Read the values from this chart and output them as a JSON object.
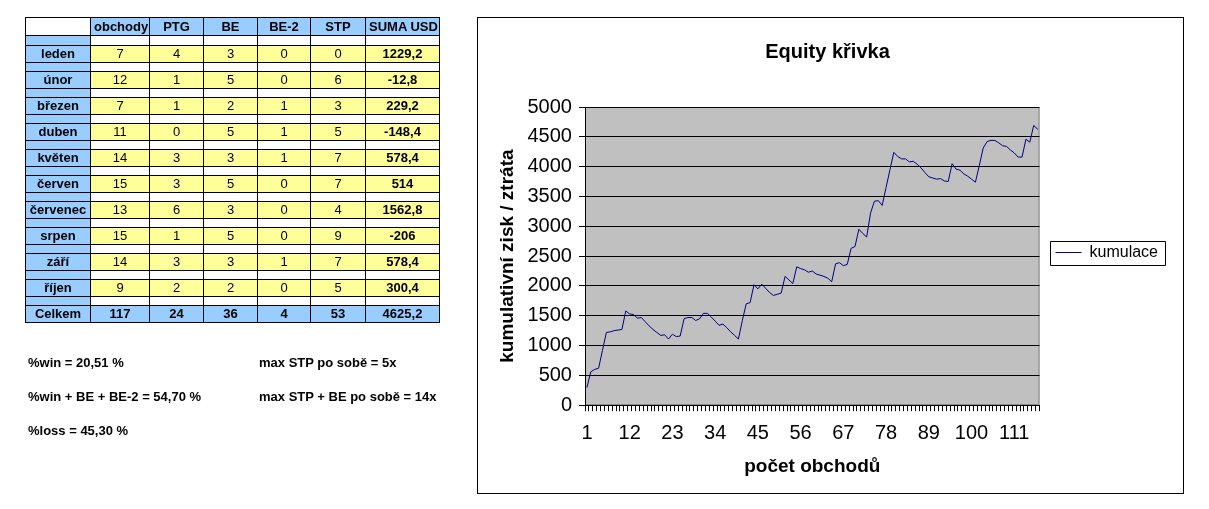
{
  "chart_data": [
    {
      "type": "other",
      "categories": [
        "obchody",
        "PTG",
        "BE",
        "BE-2",
        "STP",
        "SUMA USD"
      ],
      "y_categories": [
        "leden",
        "únor",
        "březen",
        "duben",
        "květen",
        "červen",
        "červenec",
        "srpen",
        "září",
        "říjen",
        "Celkem"
      ],
      "cell_labels": [
        [
          "7",
          "4",
          "3",
          "0",
          "0",
          "1229,2"
        ],
        [
          "12",
          "1",
          "5",
          "0",
          "6",
          "-12,8"
        ],
        [
          "7",
          "1",
          "2",
          "1",
          "3",
          "229,2"
        ],
        [
          "11",
          "0",
          "5",
          "1",
          "5",
          "-148,4"
        ],
        [
          "14",
          "3",
          "3",
          "1",
          "7",
          "578,4"
        ],
        [
          "15",
          "3",
          "5",
          "0",
          "7",
          "514"
        ],
        [
          "13",
          "6",
          "3",
          "0",
          "4",
          "1562,8"
        ],
        [
          "15",
          "1",
          "5",
          "0",
          "9",
          "-206"
        ],
        [
          "14",
          "3",
          "3",
          "1",
          "7",
          "578,4"
        ],
        [
          "9",
          "2",
          "2",
          "0",
          "5",
          "300,4"
        ],
        [
          "117",
          "24",
          "36",
          "4",
          "53",
          "4625,2"
        ]
      ],
      "annotations": [
        "%win = 20,51 %",
        "max STP po sobě = 5x",
        "%win + BE + BE-2 = 54,70 %",
        "max STP + BE po sobě = 14x",
        "%loss = 45,30 %"
      ]
    },
    {
      "type": "line",
      "title": "Equity křivka",
      "xlabel": "počet obchodů",
      "ylabel": "kumulativní zisk / ztráta",
      "categories": [
        "1",
        null,
        null,
        null,
        null,
        null,
        null,
        null,
        null,
        null,
        null,
        "12",
        null,
        null,
        null,
        null,
        null,
        null,
        null,
        null,
        null,
        null,
        "23",
        null,
        null,
        null,
        null,
        null,
        null,
        null,
        null,
        null,
        null,
        "34",
        null,
        null,
        null,
        null,
        null,
        null,
        null,
        null,
        null,
        null,
        "45",
        null,
        null,
        null,
        null,
        null,
        null,
        null,
        null,
        null,
        null,
        "56",
        null,
        null,
        null,
        null,
        null,
        null,
        null,
        null,
        null,
        null,
        "67",
        null,
        null,
        null,
        null,
        null,
        null,
        null,
        null,
        null,
        null,
        "78",
        null,
        null,
        null,
        null,
        null,
        null,
        null,
        null,
        null,
        null,
        "89",
        null,
        null,
        null,
        null,
        null,
        null,
        null,
        null,
        null,
        null,
        "100",
        null,
        null,
        null,
        null,
        null,
        null,
        null,
        null,
        null,
        null,
        "111",
        null,
        null,
        null,
        null,
        null,
        null
      ],
      "series": [
        {
          "name": "kumulace",
          "color": "#000080",
          "values": [
            300,
            560,
            600,
            620,
            920,
            1220,
            1230,
            1250,
            1260,
            1270,
            1580,
            1530,
            1520,
            1460,
            1470,
            1400,
            1330,
            1270,
            1220,
            1170,
            1180,
            1110,
            1190,
            1150,
            1160,
            1450,
            1470,
            1470,
            1420,
            1450,
            1540,
            1540,
            1480,
            1410,
            1340,
            1360,
            1300,
            1230,
            1170,
            1110,
            1420,
            1700,
            1720,
            2020,
            1950,
            2030,
            1960,
            1890,
            1840,
            1860,
            1880,
            2160,
            2100,
            2040,
            2320,
            2290,
            2270,
            2230,
            2250,
            2200,
            2180,
            2160,
            2130,
            2070,
            2370,
            2390,
            2340,
            2360,
            2630,
            2660,
            2950,
            2880,
            2820,
            3220,
            3420,
            3430,
            3350,
            3650,
            3950,
            4240,
            4170,
            4130,
            4130,
            4080,
            4090,
            4040,
            3980,
            3900,
            3830,
            3810,
            3790,
            3800,
            3760,
            3750,
            4050,
            3960,
            3940,
            3880,
            3840,
            3790,
            3740,
            4020,
            4310,
            4420,
            4440,
            4440,
            4400,
            4350,
            4340,
            4280,
            4230,
            4160,
            4160,
            4460,
            4410,
            4690,
            4630
          ]
        }
      ],
      "ylim": [
        0,
        5000
      ],
      "yticks": [
        0,
        500,
        1000,
        1500,
        2000,
        2500,
        3000,
        3500,
        4000,
        4500,
        5000
      ],
      "grid": "y",
      "legend": "right"
    }
  ]
}
